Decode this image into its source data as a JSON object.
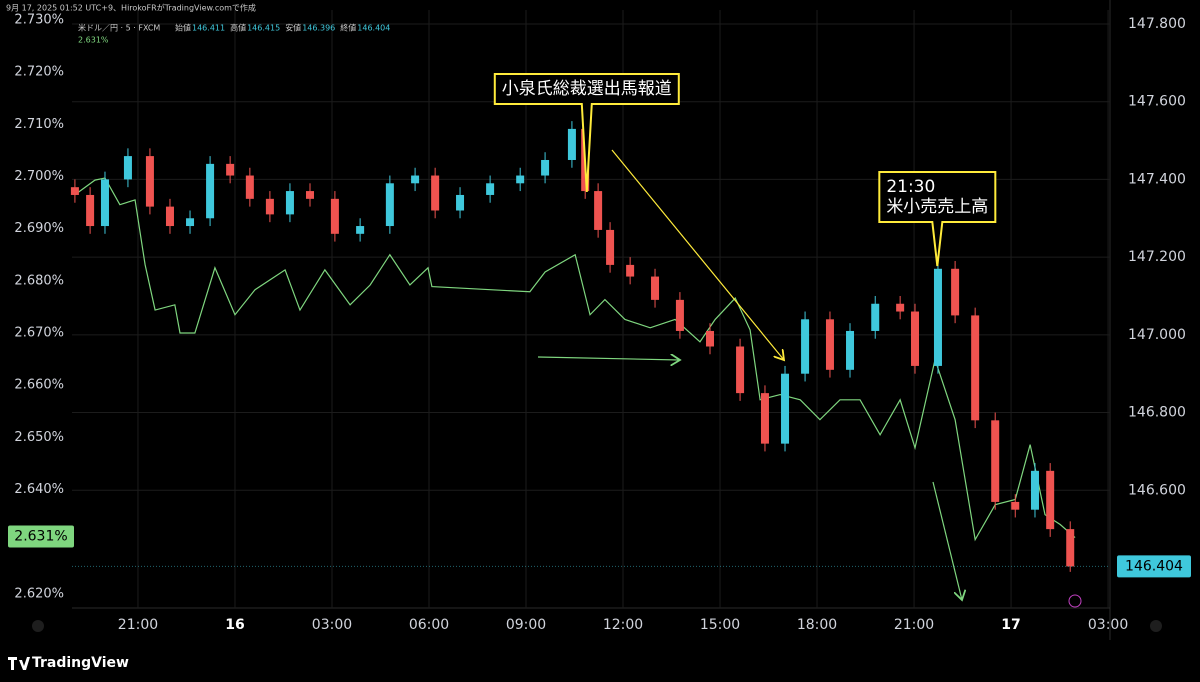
{
  "chart_data": {
    "type": "candlestick",
    "caption": "9月 17, 2025 01:52 UTC+9、HirokoFRがTradingView.comで作成",
    "symbol": "米ドル／円 · 5 · FXCM",
    "legend_ohlc": [
      {
        "label": "始値",
        "value": 146.411
      },
      {
        "label": "高値",
        "value": 146.415
      },
      {
        "label": "安値",
        "value": 146.396
      },
      {
        "label": "終値",
        "value": 146.404
      }
    ],
    "line_last": {
      "value": 2.631,
      "label": "2.631%"
    },
    "price_last": 146.404,
    "xlim": [
      18.96,
      51.06
    ],
    "xticks": [
      {
        "value": 21,
        "label": "21:00"
      },
      {
        "value": 24,
        "label": "16"
      },
      {
        "value": 27,
        "label": "03:00"
      },
      {
        "value": 30,
        "label": "06:00"
      },
      {
        "value": 33,
        "label": "09:00"
      },
      {
        "value": 36,
        "label": "12:00"
      },
      {
        "value": 39,
        "label": "15:00"
      },
      {
        "value": 42,
        "label": "18:00"
      },
      {
        "value": 45,
        "label": "21:00"
      },
      {
        "value": 48,
        "label": "17"
      },
      {
        "value": 51,
        "label": "03:00"
      }
    ],
    "ylim": [
      2.6173,
      2.7319
    ],
    "yticks": [
      {
        "value": 2.73,
        "label": "2.730%"
      },
      {
        "value": 2.72,
        "label": "2.720%"
      },
      {
        "value": 2.71,
        "label": "2.710%"
      },
      {
        "value": 2.7,
        "label": "2.700%"
      },
      {
        "value": 2.69,
        "label": "2.690%"
      },
      {
        "value": 2.68,
        "label": "2.680%"
      },
      {
        "value": 2.67,
        "label": "2.670%"
      },
      {
        "value": 2.66,
        "label": "2.660%"
      },
      {
        "value": 2.65,
        "label": "2.650%"
      },
      {
        "value": 2.64,
        "label": "2.640%"
      },
      {
        "value": 2.62,
        "label": "2.620%"
      }
    ],
    "y2lim": [
      146.297,
      147.836
    ],
    "y2ticks": [
      {
        "value": 147.8,
        "label": "147.800"
      },
      {
        "value": 147.6,
        "label": "147.600"
      },
      {
        "value": 147.4,
        "label": "147.400"
      },
      {
        "value": 147.2,
        "label": "147.200"
      },
      {
        "value": 147.0,
        "label": "147.000"
      },
      {
        "value": 146.8,
        "label": "146.800"
      },
      {
        "value": 146.6,
        "label": "146.600"
      }
    ],
    "grid": true,
    "candles": {
      "axis": "y2",
      "up_color": "#3fc8dc",
      "down_color": "#ef5350",
      "x": [
        19.05,
        19.52,
        19.98,
        20.69,
        21.37,
        21.99,
        22.61,
        23.23,
        23.85,
        24.46,
        25.08,
        25.7,
        26.32,
        27.09,
        27.87,
        28.79,
        29.57,
        30.19,
        30.96,
        31.89,
        32.82,
        33.59,
        34.42,
        34.83,
        35.23,
        35.6,
        36.22,
        36.99,
        37.76,
        38.69,
        39.62,
        40.39,
        41.01,
        41.63,
        42.4,
        43.02,
        43.8,
        44.57,
        45.03,
        45.74,
        46.27,
        46.89,
        47.51,
        48.13,
        48.74,
        49.21,
        49.83
      ],
      "open": [
        147.38,
        147.36,
        147.28,
        147.4,
        147.46,
        147.33,
        147.28,
        147.3,
        147.44,
        147.41,
        147.35,
        147.31,
        147.37,
        147.35,
        147.26,
        147.28,
        147.39,
        147.41,
        147.32,
        147.36,
        147.39,
        147.41,
        147.45,
        147.53,
        147.37,
        147.27,
        147.18,
        147.15,
        147.09,
        147.01,
        146.97,
        146.85,
        146.72,
        146.9,
        147.04,
        146.91,
        147.01,
        147.08,
        147.06,
        146.92,
        147.17,
        147.05,
        146.78,
        146.57,
        146.55,
        146.65,
        146.5
      ],
      "high": [
        147.4,
        147.38,
        147.42,
        147.48,
        147.48,
        147.35,
        147.32,
        147.46,
        147.46,
        147.43,
        147.37,
        147.39,
        147.39,
        147.37,
        147.3,
        147.41,
        147.43,
        147.43,
        147.38,
        147.41,
        147.43,
        147.47,
        147.55,
        147.55,
        147.39,
        147.29,
        147.2,
        147.17,
        147.11,
        147.03,
        146.99,
        146.87,
        146.92,
        147.06,
        147.06,
        147.03,
        147.1,
        147.1,
        147.08,
        147.19,
        147.19,
        147.07,
        146.8,
        146.59,
        146.67,
        146.67,
        146.52
      ],
      "low": [
        147.34,
        147.26,
        147.26,
        147.38,
        147.31,
        147.26,
        147.26,
        147.28,
        147.39,
        147.33,
        147.29,
        147.29,
        147.33,
        147.24,
        147.24,
        147.26,
        147.37,
        147.3,
        147.3,
        147.34,
        147.37,
        147.39,
        147.43,
        147.35,
        147.25,
        147.16,
        147.13,
        147.07,
        146.99,
        146.95,
        146.83,
        146.7,
        146.7,
        146.88,
        146.89,
        146.89,
        146.99,
        147.04,
        146.9,
        146.9,
        147.03,
        146.76,
        146.55,
        146.53,
        146.53,
        146.48,
        146.39
      ],
      "close": [
        147.36,
        147.28,
        147.4,
        147.46,
        147.33,
        147.28,
        147.3,
        147.44,
        147.41,
        147.35,
        147.31,
        147.37,
        147.35,
        147.26,
        147.28,
        147.39,
        147.41,
        147.32,
        147.36,
        147.39,
        147.41,
        147.45,
        147.53,
        147.37,
        147.27,
        147.18,
        147.15,
        147.09,
        147.01,
        146.97,
        146.85,
        146.72,
        146.9,
        147.04,
        146.91,
        147.01,
        147.08,
        147.06,
        146.92,
        147.17,
        147.05,
        146.78,
        146.57,
        146.55,
        146.65,
        146.5,
        146.404
      ]
    },
    "line": {
      "color": "#7fd67f",
      "x": [
        19.05,
        19.67,
        19.98,
        20.44,
        20.91,
        21.22,
        21.53,
        22.14,
        22.3,
        22.76,
        23.38,
        24.0,
        24.62,
        25.55,
        26.01,
        26.78,
        27.56,
        28.18,
        28.79,
        29.41,
        29.97,
        30.09,
        33.12,
        33.59,
        34.52,
        34.98,
        35.44,
        36.06,
        36.84,
        37.61,
        38.38,
        38.85,
        39.47,
        39.93,
        40.24,
        40.86,
        41.48,
        42.09,
        42.71,
        43.33,
        43.95,
        44.57,
        45.03,
        45.65,
        46.27,
        46.89,
        47.51,
        48.13,
        48.59,
        49.05,
        49.52,
        49.98
      ],
      "values": [
        2.6965,
        2.6993,
        2.6997,
        2.6946,
        2.6955,
        2.6831,
        2.6744,
        2.6754,
        2.67,
        2.67,
        2.6825,
        2.6735,
        2.6783,
        2.6821,
        2.6744,
        2.6821,
        2.6754,
        2.6792,
        2.685,
        2.6792,
        2.6825,
        2.6789,
        2.6779,
        2.6817,
        2.685,
        2.6735,
        2.6764,
        2.6726,
        2.671,
        2.6726,
        2.6683,
        2.6726,
        2.6767,
        2.6706,
        2.6572,
        2.6582,
        2.6572,
        2.6534,
        2.6572,
        2.6572,
        2.6505,
        2.6572,
        2.648,
        2.6649,
        2.6534,
        2.6304,
        2.6371,
        2.6381,
        2.6486,
        2.6352,
        2.6333,
        2.6308
      ]
    },
    "annotations": [
      {
        "lines": [
          "小泉氏総裁選出馬報道"
        ],
        "x": 34.88
      },
      {
        "lines": [
          "21:30",
          "米小売売上高"
        ],
        "x": 45.72
      }
    ],
    "brand": "TradingView"
  }
}
